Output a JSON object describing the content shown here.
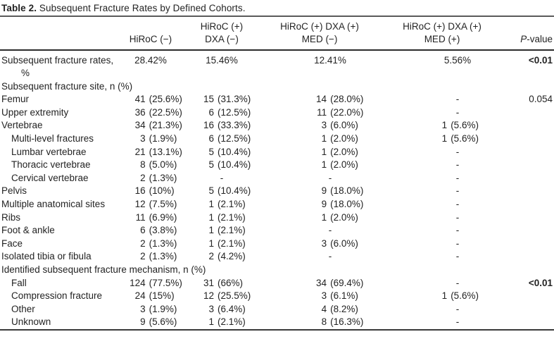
{
  "title": {
    "label": "Table 2.",
    "text": " Subsequent Fracture Rates by Defined Cohorts."
  },
  "table": {
    "columns": [
      {
        "id": "row-label",
        "lines": [
          ""
        ]
      },
      {
        "id": "hiroc-neg",
        "lines": [
          "HiRoC (−)"
        ]
      },
      {
        "id": "hiroc-pos-dxa-neg",
        "lines": [
          "HiRoC (+)",
          "DXA (−)"
        ]
      },
      {
        "id": "hiroc-pos-dxa-pos-med-neg",
        "lines": [
          "HiRoC (+) DXA (+)",
          "MED (−)"
        ]
      },
      {
        "id": "hiroc-pos-dxa-pos-med-pos",
        "lines": [
          "HiRoC (+) DXA (+)",
          "MED (+)"
        ]
      },
      {
        "id": "p-value",
        "lines": [
          "P-value"
        ],
        "italic_first": true
      }
    ],
    "rows": [
      {
        "label_lines": [
          "Subsequent fracture rates,",
          "%"
        ],
        "indent": 0,
        "cells": [
          "28.42%",
          "15.46%",
          "12.41%",
          "5.56%"
        ],
        "p": "<0.01",
        "p_bold": true
      },
      {
        "section": "Subsequent fracture site, n (%)"
      },
      {
        "label_lines": [
          "Femur"
        ],
        "indent": 0,
        "cells": [
          "41 (25.6%)",
          "15 (31.3%)",
          "14 (28.0%)",
          "-"
        ],
        "p": "0.054"
      },
      {
        "label_lines": [
          "Upper extremity"
        ],
        "indent": 0,
        "cells": [
          "36 (22.5%)",
          "6 (12.5%)",
          "11 (22.0%)",
          "-"
        ],
        "p": ""
      },
      {
        "label_lines": [
          "Vertebrae"
        ],
        "indent": 0,
        "cells": [
          "34 (21.3%)",
          "16 (33.3%)",
          "3 (6.0%)",
          "1 (5.6%)"
        ],
        "p": ""
      },
      {
        "label_lines": [
          "Multi-level fractures"
        ],
        "indent": 1,
        "cells": [
          "3 (1.9%)",
          "6 (12.5%)",
          "1 (2.0%)",
          "1 (5.6%)"
        ],
        "p": ""
      },
      {
        "label_lines": [
          "Lumbar vertebrae"
        ],
        "indent": 1,
        "cells": [
          "21 (13.1%)",
          "5 (10.4%)",
          "1 (2.0%)",
          "-"
        ],
        "p": ""
      },
      {
        "label_lines": [
          "Thoracic vertebrae"
        ],
        "indent": 1,
        "cells": [
          "8 (5.0%)",
          "5 (10.4%)",
          "1 (2.0%)",
          "-"
        ],
        "p": ""
      },
      {
        "label_lines": [
          "Cervical vertebrae"
        ],
        "indent": 1,
        "cells": [
          "2 (1.3%)",
          "-",
          "-",
          "-"
        ],
        "p": ""
      },
      {
        "label_lines": [
          "Pelvis"
        ],
        "indent": 0,
        "cells": [
          "16 (10%)",
          "5 (10.4%)",
          "9 (18.0%)",
          "-"
        ],
        "p": ""
      },
      {
        "label_lines": [
          "Multiple anatomical sites"
        ],
        "indent": 0,
        "cells": [
          "12 (7.5%)",
          "1 (2.1%)",
          "9 (18.0%)",
          "-"
        ],
        "p": ""
      },
      {
        "label_lines": [
          "Ribs"
        ],
        "indent": 0,
        "cells": [
          "11 (6.9%)",
          "1 (2.1%)",
          "1 (2.0%)",
          "-"
        ],
        "p": ""
      },
      {
        "label_lines": [
          "Foot & ankle"
        ],
        "indent": 0,
        "cells": [
          "6 (3.8%)",
          "1 (2.1%)",
          "-",
          "-"
        ],
        "p": ""
      },
      {
        "label_lines": [
          "Face"
        ],
        "indent": 0,
        "cells": [
          "2 (1.3%)",
          "1 (2.1%)",
          "3 (6.0%)",
          "-"
        ],
        "p": ""
      },
      {
        "label_lines": [
          "Isolated tibia or fibula"
        ],
        "indent": 0,
        "cells": [
          "2 (1.3%)",
          "2 (4.2%)",
          "-",
          "-"
        ],
        "p": ""
      },
      {
        "section": "Identified subsequent fracture mechanism, n (%)"
      },
      {
        "label_lines": [
          "Fall"
        ],
        "indent": 1,
        "cells": [
          "124 (77.5%)",
          "31 (66%)",
          "34 (69.4%)",
          "-"
        ],
        "p": "<0.01",
        "p_bold": true
      },
      {
        "label_lines": [
          "Compression fracture"
        ],
        "indent": 1,
        "cells": [
          "24 (15%)",
          "12 (25.5%)",
          "3 (6.1%)",
          "1 (5.6%)"
        ],
        "p": ""
      },
      {
        "label_lines": [
          "Other"
        ],
        "indent": 1,
        "cells": [
          "3 (1.9%)",
          "3 (6.4%)",
          "4 (8.2%)",
          "-"
        ],
        "p": ""
      },
      {
        "label_lines": [
          "Unknown"
        ],
        "indent": 1,
        "cells": [
          "9 (5.6%)",
          "1 (2.1%)",
          "8 (16.3%)",
          "-"
        ],
        "p": ""
      }
    ]
  }
}
